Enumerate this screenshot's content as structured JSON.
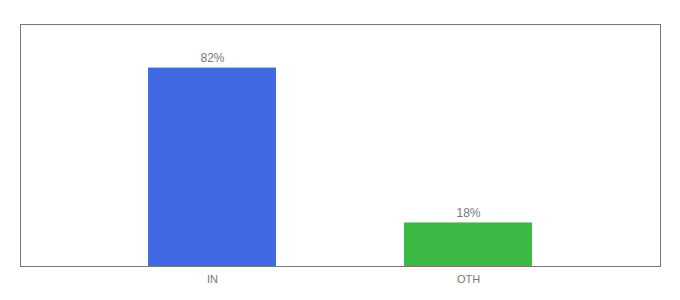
{
  "chart_data": {
    "type": "bar",
    "categories": [
      "IN",
      "OTH"
    ],
    "values": [
      82,
      18
    ],
    "value_labels": [
      "82%",
      "18%"
    ],
    "colors": [
      "#4169E1",
      "#3CB844"
    ],
    "ylim": [
      0,
      100
    ],
    "yticks": [],
    "data_labels": true,
    "tick_labels": "x",
    "grid": false
  }
}
